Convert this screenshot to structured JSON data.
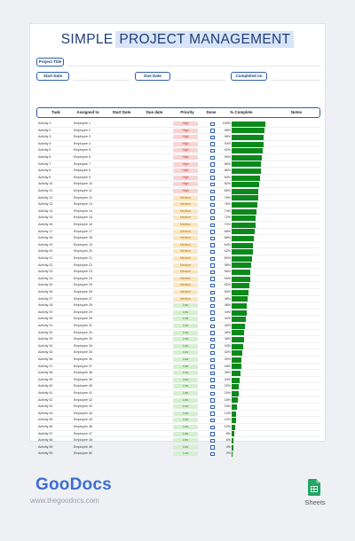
{
  "title": {
    "word1": "SIMPLE",
    "word2": "PROJECT MANAGEMENT"
  },
  "fields": {
    "project_title": "Project Title",
    "start_date": "Start Date",
    "due_date": "Due Date",
    "completed_on": "Completed on"
  },
  "columns": {
    "task": "Task",
    "assigned": "Assigned to",
    "start": "Start Date",
    "due": "Due date",
    "priority": "Priority",
    "done": "Done",
    "complete": "% Complete",
    "notes": "Notes"
  },
  "rows": [
    {
      "task": "Activity 1",
      "assigned": "Employee 1",
      "priority": "High",
      "pct": 100
    },
    {
      "task": "Activity 2",
      "assigned": "Employee 2",
      "priority": "High",
      "pct": 98
    },
    {
      "task": "Activity 3",
      "assigned": "Employee 3",
      "priority": "High",
      "pct": 96
    },
    {
      "task": "Activity 4",
      "assigned": "Employee 4",
      "priority": "High",
      "pct": 94
    },
    {
      "task": "Activity 5",
      "assigned": "Employee 5",
      "priority": "High",
      "pct": 92
    },
    {
      "task": "Activity 6",
      "assigned": "Employee 6",
      "priority": "High",
      "pct": 90
    },
    {
      "task": "Activity 7",
      "assigned": "Employee 7",
      "priority": "High",
      "pct": 88
    },
    {
      "task": "Activity 8",
      "assigned": "Employee 8",
      "priority": "High",
      "pct": 86
    },
    {
      "task": "Activity 9",
      "assigned": "Employee 9",
      "priority": "High",
      "pct": 84
    },
    {
      "task": "Activity 10",
      "assigned": "Employee 10",
      "priority": "High",
      "pct": 82
    },
    {
      "task": "Activity 11",
      "assigned": "Employee 11",
      "priority": "High",
      "pct": 80
    },
    {
      "task": "Activity 12",
      "assigned": "Employee 12",
      "priority": "Medium",
      "pct": 78
    },
    {
      "task": "Activity 13",
      "assigned": "Employee 13",
      "priority": "Medium",
      "pct": 76
    },
    {
      "task": "Activity 14",
      "assigned": "Employee 14",
      "priority": "Medium",
      "pct": 74
    },
    {
      "task": "Activity 15",
      "assigned": "Employee 15",
      "priority": "Medium",
      "pct": 72
    },
    {
      "task": "Activity 16",
      "assigned": "Employee 16",
      "priority": "Medium",
      "pct": 70
    },
    {
      "task": "Activity 17",
      "assigned": "Employee 17",
      "priority": "Medium",
      "pct": 68
    },
    {
      "task": "Activity 18",
      "assigned": "Employee 18",
      "priority": "Medium",
      "pct": 66
    },
    {
      "task": "Activity 19",
      "assigned": "Employee 19",
      "priority": "Medium",
      "pct": 64
    },
    {
      "task": "Activity 20",
      "assigned": "Employee 20",
      "priority": "Medium",
      "pct": 62
    },
    {
      "task": "Activity 21",
      "assigned": "Employee 21",
      "priority": "Medium",
      "pct": 60
    },
    {
      "task": "Activity 22",
      "assigned": "Employee 22",
      "priority": "Medium",
      "pct": 58
    },
    {
      "task": "Activity 23",
      "assigned": "Employee 23",
      "priority": "Medium",
      "pct": 56
    },
    {
      "task": "Activity 24",
      "assigned": "Employee 24",
      "priority": "Medium",
      "pct": 54
    },
    {
      "task": "Activity 25",
      "assigned": "Employee 25",
      "priority": "Medium",
      "pct": 52
    },
    {
      "task": "Activity 26",
      "assigned": "Employee 26",
      "priority": "Medium",
      "pct": 50
    },
    {
      "task": "Activity 27",
      "assigned": "Employee 27",
      "priority": "Medium",
      "pct": 48
    },
    {
      "task": "Activity 28",
      "assigned": "Employee 28",
      "priority": "Low",
      "pct": 46
    },
    {
      "task": "Activity 29",
      "assigned": "Employee 29",
      "priority": "Low",
      "pct": 44
    },
    {
      "task": "Activity 30",
      "assigned": "Employee 30",
      "priority": "Low",
      "pct": 42
    },
    {
      "task": "Activity 31",
      "assigned": "Employee 31",
      "priority": "Low",
      "pct": 40
    },
    {
      "task": "Activity 32",
      "assigned": "Employee 32",
      "priority": "Low",
      "pct": 38
    },
    {
      "task": "Activity 33",
      "assigned": "Employee 33",
      "priority": "Low",
      "pct": 36
    },
    {
      "task": "Activity 34",
      "assigned": "Employee 34",
      "priority": "Low",
      "pct": 34
    },
    {
      "task": "Activity 35",
      "assigned": "Employee 35",
      "priority": "Low",
      "pct": 32
    },
    {
      "task": "Activity 36",
      "assigned": "Employee 36",
      "priority": "Low",
      "pct": 30
    },
    {
      "task": "Activity 37",
      "assigned": "Employee 37",
      "priority": "Low",
      "pct": 28
    },
    {
      "task": "Activity 38",
      "assigned": "Employee 38",
      "priority": "Low",
      "pct": 26
    },
    {
      "task": "Activity 39",
      "assigned": "Employee 39",
      "priority": "Low",
      "pct": 24
    },
    {
      "task": "Activity 40",
      "assigned": "Employee 40",
      "priority": "Low",
      "pct": 22
    },
    {
      "task": "Activity 41",
      "assigned": "Employee 41",
      "priority": "Low",
      "pct": 20
    },
    {
      "task": "Activity 42",
      "assigned": "Employee 42",
      "priority": "Low",
      "pct": 18
    },
    {
      "task": "Activity 43",
      "assigned": "Employee 43",
      "priority": "Low",
      "pct": 16
    },
    {
      "task": "Activity 44",
      "assigned": "Employee 44",
      "priority": "Low",
      "pct": 14
    },
    {
      "task": "Activity 45",
      "assigned": "Employee 45",
      "priority": "Low",
      "pct": 12
    },
    {
      "task": "Activity 46",
      "assigned": "Employee 46",
      "priority": "Low",
      "pct": 10
    },
    {
      "task": "Activity 47",
      "assigned": "Employee 47",
      "priority": "Low",
      "pct": 8
    },
    {
      "task": "Activity 48",
      "assigned": "Employee 48",
      "priority": "Low",
      "pct": 6
    },
    {
      "task": "Activity 49",
      "assigned": "Employee 49",
      "priority": "Low",
      "pct": 4
    },
    {
      "task": "Activity 50",
      "assigned": "Employee 50",
      "priority": "Low",
      "pct": 2
    }
  ],
  "footer": {
    "logo": "GooDocs",
    "site": "www.thegoodocs.com",
    "sheets_label": "Sheets"
  },
  "colors": {
    "accent": "#2e5fae",
    "bar": "#0b8a1b",
    "high": "#f8d4d4",
    "medium": "#fbe6bf",
    "low": "#d6efd0",
    "logo": "#3d6fd1"
  },
  "icons": {
    "app": "google-sheets-icon",
    "checkbox": "checkbox-icon"
  }
}
